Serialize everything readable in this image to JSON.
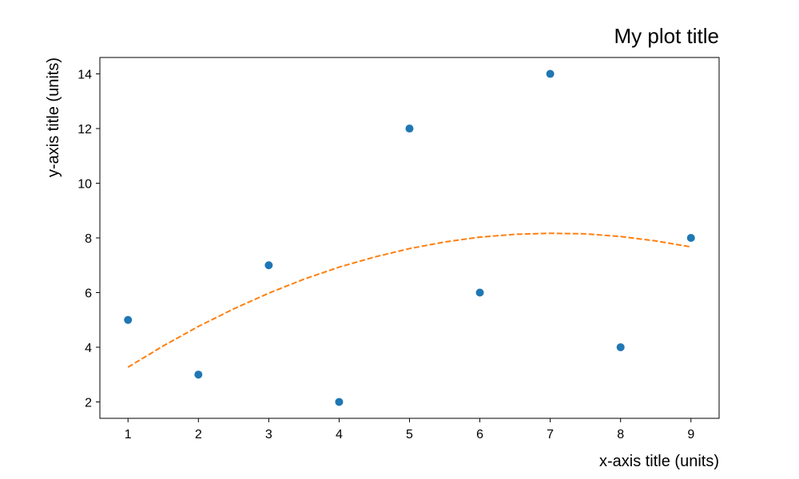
{
  "chart_data": {
    "type": "scatter",
    "title": "My plot title",
    "xlabel": "x-axis title (units)",
    "ylabel": "y-axis title (units)",
    "xlim": [
      0.6,
      9.4
    ],
    "ylim": [
      1.4,
      14.6
    ],
    "xticks": [
      1,
      2,
      3,
      4,
      5,
      6,
      7,
      8,
      9
    ],
    "yticks": [
      2,
      4,
      6,
      8,
      10,
      12,
      14
    ],
    "grid": false,
    "legend": "none",
    "series": [
      {
        "type": "scatter",
        "color": "#1f77b4",
        "x": [
          1,
          2,
          3,
          4,
          5,
          6,
          7,
          8,
          9
        ],
        "y": [
          5,
          3,
          7,
          2,
          12,
          6,
          14,
          4,
          8
        ]
      },
      {
        "type": "line",
        "style": "dashed",
        "color": "#ff7f0e",
        "x": [
          1,
          1.5,
          2,
          2.5,
          3,
          3.5,
          4,
          4.5,
          5,
          5.5,
          6,
          6.5,
          7,
          7.5,
          8,
          8.5,
          9
        ],
        "y": [
          3.27,
          4.05,
          4.76,
          5.4,
          5.98,
          6.49,
          6.93,
          7.3,
          7.61,
          7.85,
          8.03,
          8.13,
          8.17,
          8.15,
          8.05,
          7.89,
          7.67
        ]
      }
    ]
  }
}
